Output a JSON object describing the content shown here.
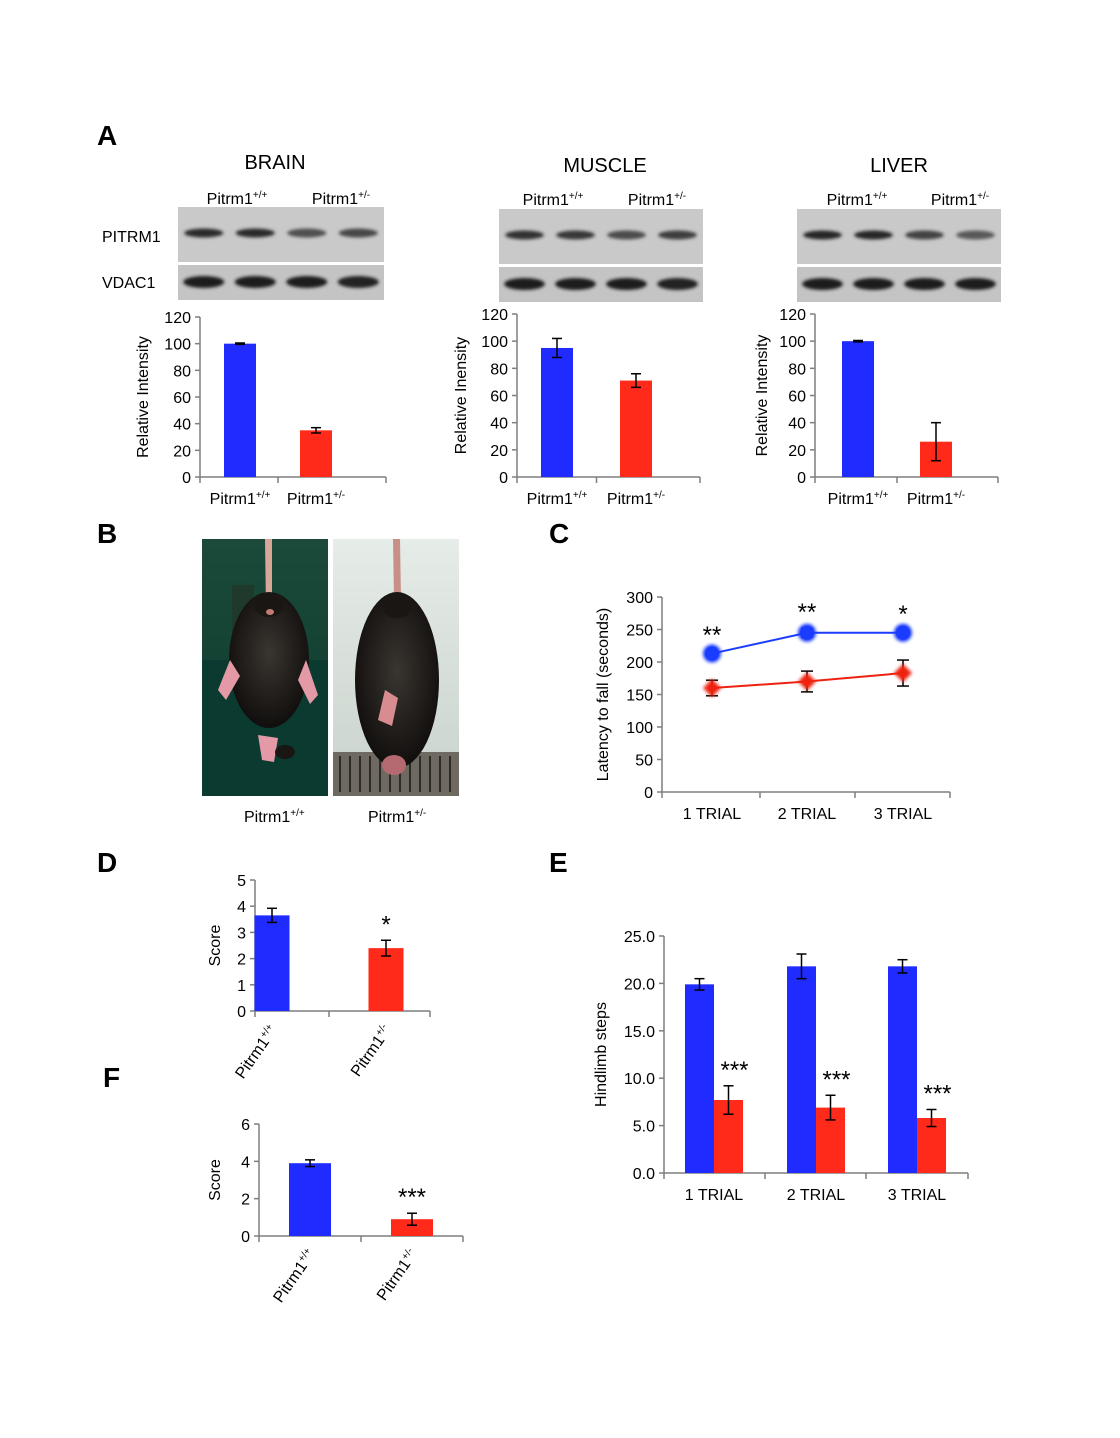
{
  "panel_letters": [
    "A",
    "B",
    "C",
    "D",
    "E",
    "F"
  ],
  "colors": {
    "wt": "#1f2bff",
    "het": "#ff2a1a",
    "line_wt": "#1a3cff",
    "line_het": "#ee2211"
  },
  "blots": {
    "tissues": [
      {
        "name": "BRAIN",
        "wt_label": "Pitrm1",
        "wt_sup": "+/+",
        "het_label": "Pitrm1",
        "het_sup": "+/-"
      },
      {
        "name": "MUSCLE",
        "wt_label": "Pitrm1",
        "wt_sup": "+/+",
        "het_label": "Pitrm1",
        "het_sup": "+/-"
      },
      {
        "name": "LIVER",
        "wt_label": "Pitrm1",
        "wt_sup": "+/+",
        "het_label": "Pitrm1",
        "het_sup": "+/-"
      }
    ],
    "row_labels": [
      "PITRM1",
      "VDAC1"
    ],
    "band_intensity": [
      {
        "pitrm1": [
          0.85,
          0.85,
          0.45,
          0.55
        ],
        "vdac1": [
          0.95,
          0.95,
          0.95,
          0.9
        ]
      },
      {
        "pitrm1": [
          0.8,
          0.7,
          0.5,
          0.65
        ],
        "vdac1": [
          0.95,
          0.95,
          0.95,
          0.9
        ]
      },
      {
        "pitrm1": [
          0.9,
          0.9,
          0.6,
          0.35
        ],
        "vdac1": [
          0.95,
          0.95,
          0.95,
          0.95
        ]
      }
    ]
  },
  "photos": {
    "wt_label": "Pitrm1",
    "wt_sup": "+/+",
    "het_label": "Pitrm1",
    "het_sup": "+/-"
  },
  "chart_data": [
    {
      "panel": "A-brain",
      "type": "bar",
      "categories": [
        "Pitrm1+/+",
        "Pitrm1+/-"
      ],
      "cat_labels": [
        {
          "base": "Pitrm1",
          "sup": "+/+"
        },
        {
          "base": "Pitrm1",
          "sup": "+/-"
        }
      ],
      "values": [
        100,
        35
      ],
      "errors": [
        0.5,
        2
      ],
      "ylabel": "Relative Intensity",
      "ylim": [
        0,
        120
      ],
      "ticks": [
        "0",
        "20",
        "40",
        "60",
        "80",
        "100",
        "120"
      ],
      "grid": false
    },
    {
      "panel": "A-muscle",
      "type": "bar",
      "categories": [
        "Pitrm1+/+",
        "Pitrm1+/-"
      ],
      "cat_labels": [
        {
          "base": "Pitrm1",
          "sup": "+/+"
        },
        {
          "base": "Pitrm1",
          "sup": "+/-"
        }
      ],
      "values": [
        95,
        71
      ],
      "errors": [
        7,
        5
      ],
      "ylabel": "Relative Inensity",
      "ylim": [
        0,
        120
      ],
      "ticks": [
        "0",
        "20",
        "40",
        "60",
        "80",
        "100",
        "120"
      ],
      "grid": false
    },
    {
      "panel": "A-liver",
      "type": "bar",
      "categories": [
        "Pitrm1+/+",
        "Pitrm1+/-"
      ],
      "cat_labels": [
        {
          "base": "Pitrm1",
          "sup": "+/+"
        },
        {
          "base": "Pitrm1",
          "sup": "+/-"
        }
      ],
      "values": [
        100,
        26
      ],
      "errors": [
        0.5,
        14
      ],
      "ylabel": "Relative Intensity",
      "ylim": [
        0,
        120
      ],
      "ticks": [
        "0",
        "20",
        "40",
        "60",
        "80",
        "100",
        "120"
      ],
      "grid": false
    },
    {
      "panel": "C",
      "type": "line",
      "categories": [
        "1 TRIAL",
        "2 TRIAL",
        "3 TRIAL"
      ],
      "series": [
        {
          "values": [
            213,
            245,
            245
          ],
          "errors": [
            4,
            7,
            4
          ],
          "marker": "circle",
          "color": "#1a3cff"
        },
        {
          "values": [
            160,
            170,
            183
          ],
          "errors": [
            12,
            16,
            20
          ],
          "marker": "diamond",
          "color": "#ee2211"
        }
      ],
      "annotations": [
        "**",
        "**",
        "*"
      ],
      "ylabel": "Latency to fall (seconds)",
      "ylim": [
        0,
        300
      ],
      "ticks": [
        "0",
        "50",
        "100",
        "150",
        "200",
        "250",
        "300"
      ],
      "grid": false
    },
    {
      "panel": "D",
      "type": "bar",
      "categories": [
        "Pitrm1+/+",
        "Pitrm1+/-"
      ],
      "cat_labels": [
        {
          "base": "Pitrm1",
          "sup": "+/+"
        },
        {
          "base": "Pitrm1",
          "sup": "+/-"
        }
      ],
      "values": [
        3.65,
        2.4
      ],
      "errors": [
        0.27,
        0.3
      ],
      "annotations": [
        "",
        "*"
      ],
      "ylabel": "Score",
      "ylim": [
        0,
        5
      ],
      "ticks": [
        "0",
        "1",
        "2",
        "3",
        "4",
        "5"
      ],
      "grid": false
    },
    {
      "panel": "E",
      "type": "bar",
      "categories": [
        "1 TRIAL",
        "2 TRIAL",
        "3 TRIAL"
      ],
      "series": [
        {
          "values": [
            19.9,
            21.8,
            21.8
          ],
          "errors": [
            0.6,
            1.3,
            0.7
          ],
          "color": "#1f2bff"
        },
        {
          "values": [
            7.7,
            6.9,
            5.8
          ],
          "errors": [
            1.5,
            1.3,
            0.9
          ],
          "color": "#ff2a1a"
        }
      ],
      "annotations": [
        "***",
        "***",
        "***"
      ],
      "ylabel": "Hindlimb steps",
      "ylim": [
        0,
        25
      ],
      "ticks": [
        "0.0",
        "5.0",
        "10.0",
        "15.0",
        "20.0",
        "25.0"
      ],
      "grid": false
    },
    {
      "panel": "F",
      "type": "bar",
      "categories": [
        "Pitrm1+/+",
        "Pitrm1+/-"
      ],
      "cat_labels": [
        {
          "base": "Pitrm1",
          "sup": "+/+"
        },
        {
          "base": "Pitrm1",
          "sup": "+/-"
        }
      ],
      "values": [
        3.9,
        0.9
      ],
      "errors": [
        0.18,
        0.32
      ],
      "annotations": [
        "",
        "***"
      ],
      "ylabel": "Score",
      "ylim": [
        0,
        6
      ],
      "ticks": [
        "0",
        "2",
        "4",
        "6"
      ],
      "grid": false
    }
  ]
}
